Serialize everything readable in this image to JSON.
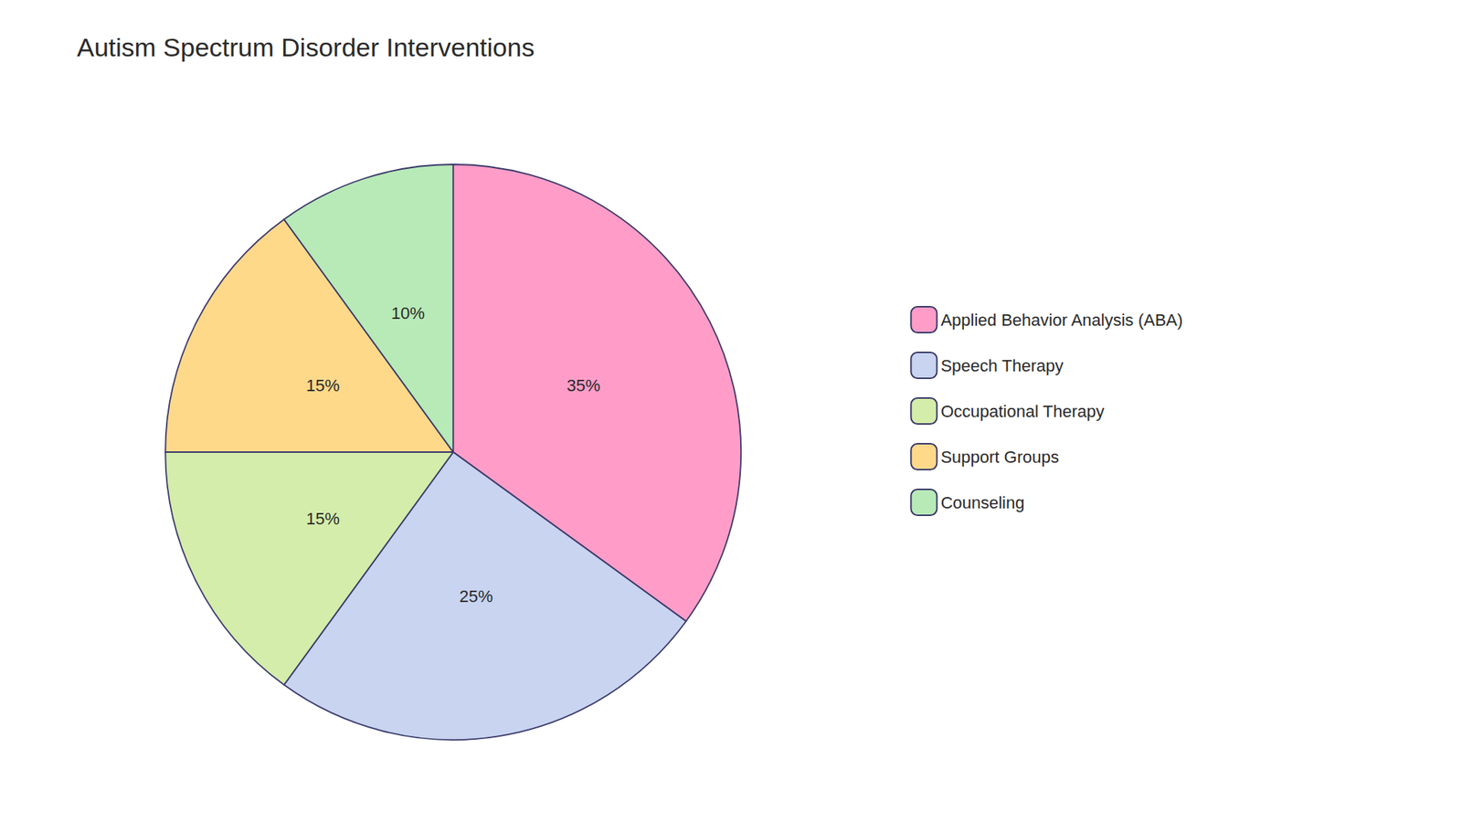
{
  "chart_data": {
    "type": "pie",
    "title": "Autism Spectrum Disorder Interventions",
    "categories": [
      "Applied Behavior Analysis (ABA)",
      "Speech Therapy",
      "Occupational Therapy",
      "Support Groups",
      "Counseling"
    ],
    "values": [
      35,
      25,
      15,
      15,
      10
    ],
    "value_labels": [
      "35%",
      "25%",
      "15%",
      "15%",
      "10%"
    ],
    "colors": [
      "#FF9DC8",
      "#C8D4F0",
      "#D4EDAA",
      "#FFD98A",
      "#B8EAB8"
    ],
    "data_labels": true,
    "legend": "right"
  }
}
